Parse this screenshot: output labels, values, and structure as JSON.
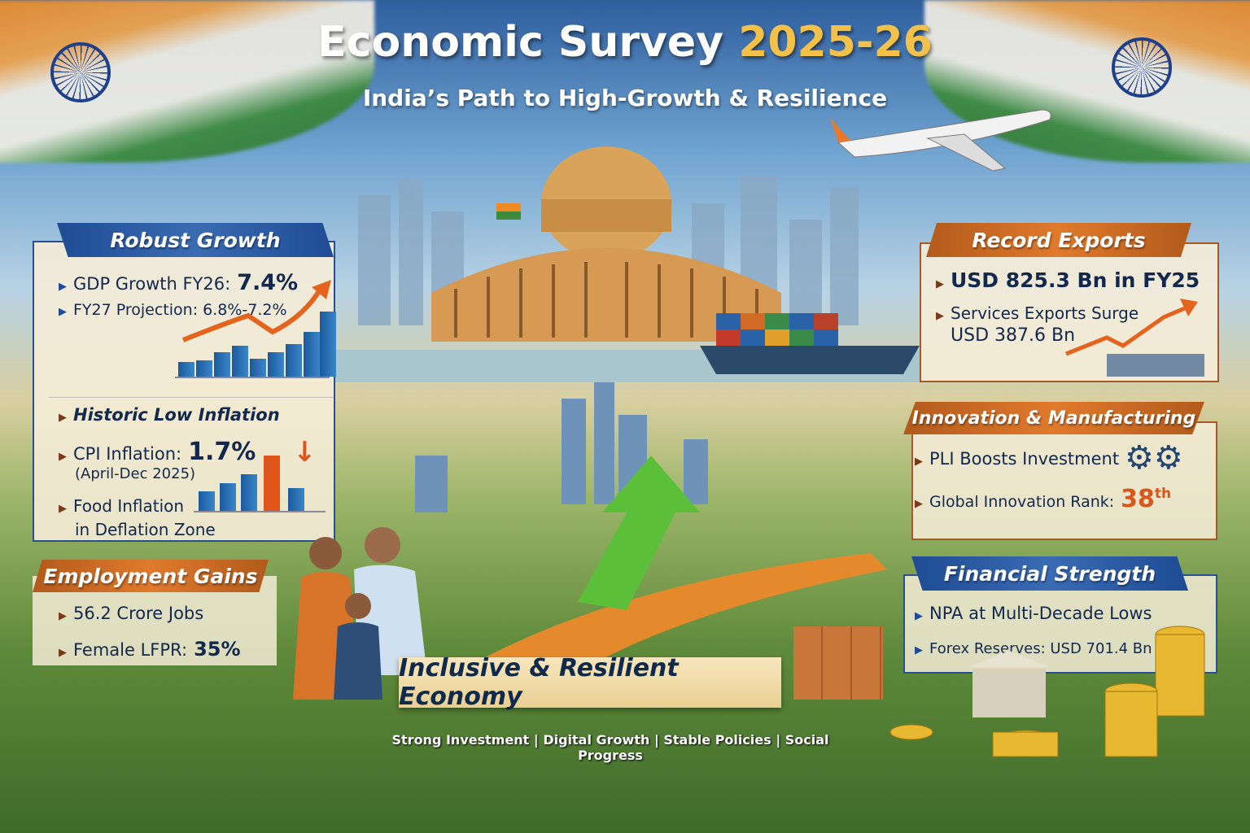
{
  "header": {
    "title": "Economic Survey",
    "title_year": "2025-26",
    "subtitle": "India’s Path to High-Growth & Resilience"
  },
  "robust_growth": {
    "heading": "Robust Growth",
    "items": [
      {
        "label": "GDP Growth FY26:",
        "value": "7.4%"
      },
      {
        "label": "FY27 Projection: 6.8%-7.2%"
      }
    ]
  },
  "inflation": {
    "heading": "Historic Low Inflation",
    "cpi_label": "CPI Inflation:",
    "cpi_value": "1.7%",
    "cpi_period": "(April-Dec 2025)",
    "food_line1": "Food Inflation",
    "food_line2": "in Deflation Zone"
  },
  "employment": {
    "heading": "Employment Gains",
    "items": [
      "56.2 Crore Jobs"
    ],
    "lfpr_label": "Female LFPR:",
    "lfpr_value": "35%"
  },
  "exports": {
    "heading": "Record Exports",
    "item1": "USD 825.3 Bn in FY25",
    "item2_line1": "Services Exports Surge",
    "item2_line2": "USD 387.6 Bn"
  },
  "innovation": {
    "heading": "Innovation & Manufacturing",
    "item1": "PLI Boosts Investment",
    "rank_label": "Global Innovation Rank:",
    "rank_value": "38",
    "rank_suffix": "th"
  },
  "financial": {
    "heading": "Financial Strength",
    "item1": "NPA at Multi-Decade Lows",
    "item2": "Forex Reserves: USD 701.4 Bn"
  },
  "center": {
    "ribbon": "Inclusive & Resilient Economy",
    "tags": [
      "Strong Investment",
      "Digital Growth",
      "Stable Policies",
      "Social Progress"
    ],
    "separator": "|"
  },
  "colors": {
    "navy": "#13284d",
    "blue_banner": "#1f4c94",
    "orange_banner": "#d06a24",
    "accent_gold": "#f3c04a"
  }
}
